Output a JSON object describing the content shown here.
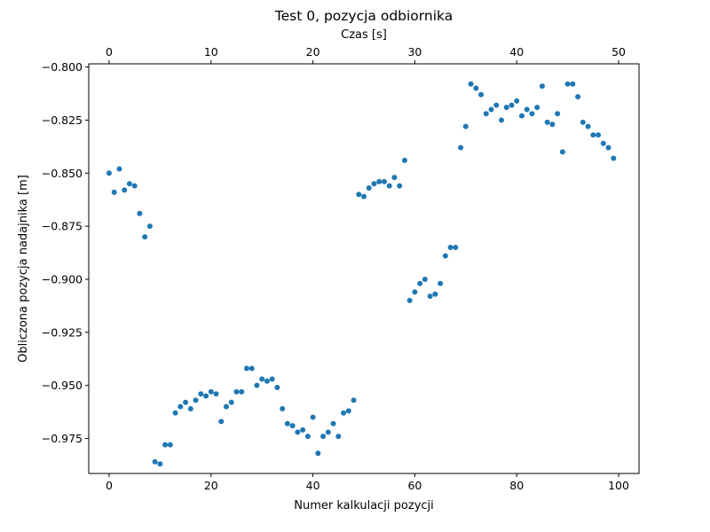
{
  "chart_data": {
    "type": "scatter",
    "title": "Test 0, pozycja odbiornika",
    "xlabel": "Numer kalkulacji pozycji",
    "ylabel": "Obliczona pozycja nadajnika [m]",
    "x2label": "Czas [s]",
    "xlim": [
      -4,
      104
    ],
    "ylim": [
      -0.9915,
      -0.7985
    ],
    "x2lim": [
      -2,
      52
    ],
    "xticks": [
      0,
      20,
      40,
      60,
      80,
      100
    ],
    "xtick_labels": [
      "0",
      "20",
      "40",
      "60",
      "80",
      "100"
    ],
    "x2ticks": [
      0,
      10,
      20,
      30,
      40,
      50
    ],
    "x2tick_labels": [
      "0",
      "10",
      "20",
      "30",
      "40",
      "50"
    ],
    "yticks": [
      -0.8,
      -0.825,
      -0.85,
      -0.875,
      -0.9,
      -0.925,
      -0.95,
      -0.975
    ],
    "ytick_labels": [
      "−0.800",
      "−0.825",
      "−0.850",
      "−0.875",
      "−0.900",
      "−0.925",
      "−0.950",
      "−0.975"
    ],
    "grid": false,
    "marker_color": "#1f77b4",
    "points": [
      {
        "x": 0,
        "y": -0.85
      },
      {
        "x": 1,
        "y": -0.859
      },
      {
        "x": 2,
        "y": -0.848
      },
      {
        "x": 3,
        "y": -0.858
      },
      {
        "x": 4,
        "y": -0.855
      },
      {
        "x": 5,
        "y": -0.856
      },
      {
        "x": 6,
        "y": -0.869
      },
      {
        "x": 7,
        "y": -0.88
      },
      {
        "x": 8,
        "y": -0.875
      },
      {
        "x": 9,
        "y": -0.986
      },
      {
        "x": 10,
        "y": -0.987
      },
      {
        "x": 11,
        "y": -0.978
      },
      {
        "x": 12,
        "y": -0.978
      },
      {
        "x": 13,
        "y": -0.963
      },
      {
        "x": 14,
        "y": -0.96
      },
      {
        "x": 15,
        "y": -0.958
      },
      {
        "x": 16,
        "y": -0.961
      },
      {
        "x": 17,
        "y": -0.957
      },
      {
        "x": 18,
        "y": -0.954
      },
      {
        "x": 19,
        "y": -0.955
      },
      {
        "x": 20,
        "y": -0.953
      },
      {
        "x": 21,
        "y": -0.954
      },
      {
        "x": 22,
        "y": -0.967
      },
      {
        "x": 23,
        "y": -0.96
      },
      {
        "x": 24,
        "y": -0.958
      },
      {
        "x": 25,
        "y": -0.953
      },
      {
        "x": 26,
        "y": -0.953
      },
      {
        "x": 27,
        "y": -0.942
      },
      {
        "x": 28,
        "y": -0.942
      },
      {
        "x": 29,
        "y": -0.95
      },
      {
        "x": 30,
        "y": -0.947
      },
      {
        "x": 31,
        "y": -0.948
      },
      {
        "x": 32,
        "y": -0.947
      },
      {
        "x": 33,
        "y": -0.951
      },
      {
        "x": 34,
        "y": -0.961
      },
      {
        "x": 35,
        "y": -0.968
      },
      {
        "x": 36,
        "y": -0.969
      },
      {
        "x": 37,
        "y": -0.972
      },
      {
        "x": 38,
        "y": -0.971
      },
      {
        "x": 39,
        "y": -0.974
      },
      {
        "x": 40,
        "y": -0.965
      },
      {
        "x": 41,
        "y": -0.982
      },
      {
        "x": 42,
        "y": -0.974
      },
      {
        "x": 43,
        "y": -0.972
      },
      {
        "x": 44,
        "y": -0.968
      },
      {
        "x": 45,
        "y": -0.974
      },
      {
        "x": 46,
        "y": -0.963
      },
      {
        "x": 47,
        "y": -0.962
      },
      {
        "x": 48,
        "y": -0.957
      },
      {
        "x": 49,
        "y": -0.86
      },
      {
        "x": 50,
        "y": -0.861
      },
      {
        "x": 51,
        "y": -0.857
      },
      {
        "x": 52,
        "y": -0.855
      },
      {
        "x": 53,
        "y": -0.854
      },
      {
        "x": 54,
        "y": -0.854
      },
      {
        "x": 55,
        "y": -0.856
      },
      {
        "x": 56,
        "y": -0.852
      },
      {
        "x": 57,
        "y": -0.856
      },
      {
        "x": 58,
        "y": -0.844
      },
      {
        "x": 59,
        "y": -0.91
      },
      {
        "x": 60,
        "y": -0.906
      },
      {
        "x": 61,
        "y": -0.902
      },
      {
        "x": 62,
        "y": -0.9
      },
      {
        "x": 63,
        "y": -0.908
      },
      {
        "x": 64,
        "y": -0.907
      },
      {
        "x": 65,
        "y": -0.902
      },
      {
        "x": 66,
        "y": -0.889
      },
      {
        "x": 67,
        "y": -0.885
      },
      {
        "x": 68,
        "y": -0.885
      },
      {
        "x": 69,
        "y": -0.838
      },
      {
        "x": 70,
        "y": -0.828
      },
      {
        "x": 71,
        "y": -0.808
      },
      {
        "x": 72,
        "y": -0.81
      },
      {
        "x": 73,
        "y": -0.813
      },
      {
        "x": 74,
        "y": -0.822
      },
      {
        "x": 75,
        "y": -0.82
      },
      {
        "x": 76,
        "y": -0.818
      },
      {
        "x": 77,
        "y": -0.825
      },
      {
        "x": 78,
        "y": -0.819
      },
      {
        "x": 79,
        "y": -0.818
      },
      {
        "x": 80,
        "y": -0.816
      },
      {
        "x": 81,
        "y": -0.823
      },
      {
        "x": 82,
        "y": -0.82
      },
      {
        "x": 83,
        "y": -0.822
      },
      {
        "x": 84,
        "y": -0.819
      },
      {
        "x": 85,
        "y": -0.809
      },
      {
        "x": 86,
        "y": -0.826
      },
      {
        "x": 87,
        "y": -0.827
      },
      {
        "x": 88,
        "y": -0.822
      },
      {
        "x": 89,
        "y": -0.84
      },
      {
        "x": 90,
        "y": -0.808
      },
      {
        "x": 91,
        "y": -0.808
      },
      {
        "x": 92,
        "y": -0.814
      },
      {
        "x": 93,
        "y": -0.826
      },
      {
        "x": 94,
        "y": -0.828
      },
      {
        "x": 95,
        "y": -0.832
      },
      {
        "x": 96,
        "y": -0.832
      },
      {
        "x": 97,
        "y": -0.836
      },
      {
        "x": 98,
        "y": -0.838
      },
      {
        "x": 99,
        "y": -0.843
      }
    ]
  }
}
